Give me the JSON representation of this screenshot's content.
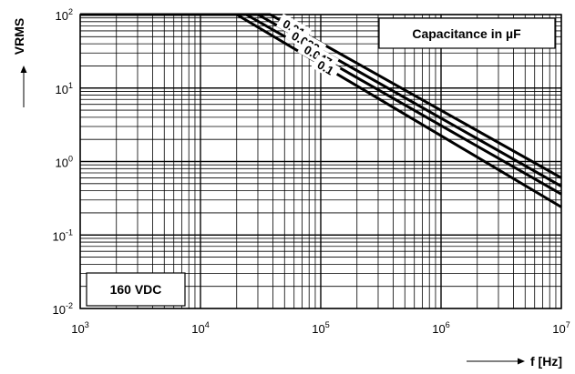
{
  "chart_data": {
    "type": "line",
    "xscale": "log",
    "yscale": "log",
    "xlim": [
      1000,
      10000000
    ],
    "ylim": [
      0.01,
      100
    ],
    "xticks": [
      {
        "base": "10",
        "exp": "3",
        "value": 1000
      },
      {
        "base": "10",
        "exp": "4",
        "value": 10000
      },
      {
        "base": "10",
        "exp": "5",
        "value": 100000
      },
      {
        "base": "10",
        "exp": "6",
        "value": 1000000
      },
      {
        "base": "10",
        "exp": "7",
        "value": 10000000
      }
    ],
    "yticks": [
      {
        "base": "10",
        "exp": "2",
        "value": 100
      },
      {
        "base": "10",
        "exp": "1",
        "value": 10
      },
      {
        "base": "10",
        "exp": "0",
        "value": 1
      },
      {
        "base": "10",
        "exp": "-1",
        "value": 0.1
      },
      {
        "base": "10",
        "exp": "-2",
        "value": 0.01
      }
    ],
    "xlabel": "f [Hz]",
    "ylabel": "VRMS",
    "grid": true,
    "legend_title": "Capacitance in µF",
    "voltage_label": "160 VDC",
    "series": [
      {
        "name": "0.01",
        "x": [
          1000,
          38000,
          10000000
        ],
        "y": [
          100,
          100,
          0.6
        ]
      },
      {
        "name": "0.022",
        "x": [
          1000,
          30000,
          10000000
        ],
        "y": [
          100,
          100,
          0.46
        ]
      },
      {
        "name": "0.047",
        "x": [
          1000,
          24000,
          10000000
        ],
        "y": [
          100,
          100,
          0.36
        ]
      },
      {
        "name": "0.1",
        "x": [
          1000,
          20000,
          10000000
        ],
        "y": [
          100,
          100,
          0.24
        ]
      }
    ]
  }
}
